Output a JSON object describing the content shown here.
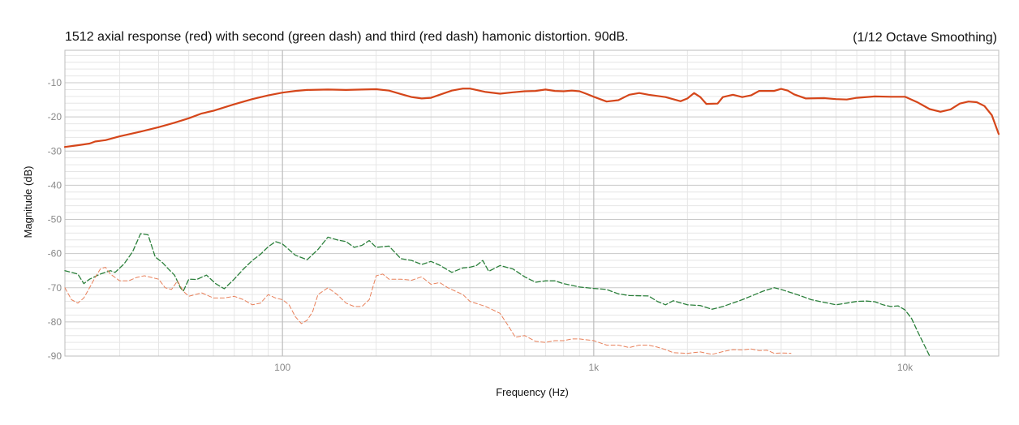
{
  "chart_data": {
    "type": "line",
    "title": "1512 axial response (red) with second (green dash) and third (red dash) hamonic distortion. 90dB.",
    "subtitle": "(1/12 Octave Smoothing)",
    "xlabel": "Frequency (Hz)",
    "ylabel": "Magnitude (dB)",
    "x_scale": "log",
    "xlim": [
      20,
      20000
    ],
    "ylim": [
      -90,
      -0.5
    ],
    "y_ticks": [
      -10,
      -20,
      -30,
      -40,
      -50,
      -60,
      -70,
      -80,
      -90
    ],
    "x_ticks": [
      {
        "value": 100,
        "label": "100"
      },
      {
        "value": 1000,
        "label": "1k"
      },
      {
        "value": 10000,
        "label": "10k"
      }
    ],
    "grid": true,
    "series": [
      {
        "color": "#d5461a",
        "style": "solid",
        "points": [
          [
            20,
            -28.8
          ],
          [
            22,
            -28.3
          ],
          [
            24,
            -27.8
          ],
          [
            25,
            -27.2
          ],
          [
            27,
            -26.8
          ],
          [
            30,
            -25.7
          ],
          [
            35,
            -24.3
          ],
          [
            40,
            -23
          ],
          [
            45,
            -21.7
          ],
          [
            50,
            -20.4
          ],
          [
            55,
            -19
          ],
          [
            60,
            -18.2
          ],
          [
            70,
            -16.3
          ],
          [
            80,
            -14.8
          ],
          [
            90,
            -13.7
          ],
          [
            100,
            -12.9
          ],
          [
            110,
            -12.4
          ],
          [
            120,
            -12.1
          ],
          [
            140,
            -12
          ],
          [
            160,
            -12.1
          ],
          [
            180,
            -12
          ],
          [
            200,
            -11.9
          ],
          [
            220,
            -12.3
          ],
          [
            240,
            -13.3
          ],
          [
            260,
            -14.2
          ],
          [
            280,
            -14.6
          ],
          [
            300,
            -14.4
          ],
          [
            320,
            -13.5
          ],
          [
            350,
            -12.3
          ],
          [
            380,
            -11.7
          ],
          [
            400,
            -11.7
          ],
          [
            450,
            -12.7
          ],
          [
            500,
            -13.2
          ],
          [
            550,
            -12.8
          ],
          [
            600,
            -12.5
          ],
          [
            650,
            -12.4
          ],
          [
            700,
            -12
          ],
          [
            750,
            -12.4
          ],
          [
            800,
            -12.5
          ],
          [
            850,
            -12.3
          ],
          [
            900,
            -12.5
          ],
          [
            950,
            -13.3
          ],
          [
            1000,
            -14.1
          ],
          [
            1100,
            -15.5
          ],
          [
            1200,
            -15.1
          ],
          [
            1300,
            -13.5
          ],
          [
            1400,
            -13
          ],
          [
            1500,
            -13.5
          ],
          [
            1700,
            -14.2
          ],
          [
            1900,
            -15.4
          ],
          [
            2000,
            -14.6
          ],
          [
            2100,
            -13
          ],
          [
            2200,
            -14.2
          ],
          [
            2300,
            -16.2
          ],
          [
            2500,
            -16.1
          ],
          [
            2600,
            -14.2
          ],
          [
            2800,
            -13.5
          ],
          [
            3000,
            -14.2
          ],
          [
            3200,
            -13.7
          ],
          [
            3400,
            -12.4
          ],
          [
            3600,
            -12.4
          ],
          [
            3800,
            -12.4
          ],
          [
            4000,
            -11.8
          ],
          [
            4200,
            -12.3
          ],
          [
            4400,
            -13.4
          ],
          [
            4800,
            -14.6
          ],
          [
            5500,
            -14.5
          ],
          [
            6000,
            -14.8
          ],
          [
            6500,
            -14.9
          ],
          [
            7000,
            -14.4
          ],
          [
            8000,
            -14
          ],
          [
            9000,
            -14.1
          ],
          [
            10000,
            -14.1
          ],
          [
            11000,
            -15.8
          ],
          [
            12000,
            -17.7
          ],
          [
            13000,
            -18.5
          ],
          [
            14000,
            -17.8
          ],
          [
            15000,
            -16.1
          ],
          [
            16000,
            -15.5
          ],
          [
            17000,
            -15.7
          ],
          [
            18000,
            -16.8
          ],
          [
            19000,
            -19.5
          ],
          [
            20000,
            -25
          ]
        ]
      },
      {
        "color": "#2a7f3a",
        "style": "dashed",
        "points": [
          [
            20,
            -65
          ],
          [
            22,
            -66
          ],
          [
            23,
            -68.8
          ],
          [
            24,
            -67.5
          ],
          [
            26,
            -66
          ],
          [
            28,
            -65
          ],
          [
            29,
            -65.5
          ],
          [
            31,
            -63
          ],
          [
            33,
            -59.5
          ],
          [
            35,
            -54.2
          ],
          [
            37,
            -54.5
          ],
          [
            39,
            -61
          ],
          [
            41,
            -62.5
          ],
          [
            43,
            -64.5
          ],
          [
            45,
            -66.3
          ],
          [
            47,
            -70
          ],
          [
            48,
            -71
          ],
          [
            50,
            -67.5
          ],
          [
            53,
            -67.6
          ],
          [
            57,
            -66.3
          ],
          [
            61,
            -68.8
          ],
          [
            65,
            -70.3
          ],
          [
            70,
            -67.5
          ],
          [
            75,
            -64.5
          ],
          [
            80,
            -62
          ],
          [
            85,
            -60.2
          ],
          [
            90,
            -58
          ],
          [
            95,
            -56.5
          ],
          [
            100,
            -57.2
          ],
          [
            110,
            -60.5
          ],
          [
            120,
            -61.8
          ],
          [
            130,
            -58.8
          ],
          [
            140,
            -55.2
          ],
          [
            150,
            -56
          ],
          [
            160,
            -56.5
          ],
          [
            170,
            -58.2
          ],
          [
            180,
            -57.6
          ],
          [
            190,
            -56.2
          ],
          [
            200,
            -58.2
          ],
          [
            210,
            -58
          ],
          [
            220,
            -57.8
          ],
          [
            240,
            -61.5
          ],
          [
            260,
            -62
          ],
          [
            280,
            -63.2
          ],
          [
            300,
            -62.3
          ],
          [
            320,
            -63.4
          ],
          [
            350,
            -65.5
          ],
          [
            380,
            -64.2
          ],
          [
            400,
            -64
          ],
          [
            420,
            -63.5
          ],
          [
            440,
            -62
          ],
          [
            460,
            -65.2
          ],
          [
            500,
            -63.5
          ],
          [
            550,
            -64.5
          ],
          [
            600,
            -66.8
          ],
          [
            650,
            -68.4
          ],
          [
            700,
            -68
          ],
          [
            750,
            -68
          ],
          [
            800,
            -68.8
          ],
          [
            900,
            -69.8
          ],
          [
            1000,
            -70.2
          ],
          [
            1100,
            -70.5
          ],
          [
            1200,
            -71.8
          ],
          [
            1300,
            -72.3
          ],
          [
            1500,
            -72.4
          ],
          [
            1600,
            -74
          ],
          [
            1700,
            -75
          ],
          [
            1800,
            -73.8
          ],
          [
            2000,
            -75
          ],
          [
            2200,
            -75.2
          ],
          [
            2400,
            -76.3
          ],
          [
            2600,
            -75.5
          ],
          [
            3000,
            -73.5
          ],
          [
            3500,
            -71
          ],
          [
            3800,
            -70
          ],
          [
            4000,
            -70.5
          ],
          [
            4500,
            -72
          ],
          [
            5000,
            -73.5
          ],
          [
            6000,
            -75
          ],
          [
            6500,
            -74.5
          ],
          [
            7000,
            -74
          ],
          [
            7500,
            -73.9
          ],
          [
            8000,
            -74.1
          ],
          [
            8500,
            -75
          ],
          [
            9000,
            -75.5
          ],
          [
            9500,
            -75.3
          ],
          [
            10000,
            -76.5
          ],
          [
            10500,
            -79
          ],
          [
            11000,
            -83
          ],
          [
            12000,
            -90
          ]
        ]
      },
      {
        "color": "#e8805a",
        "style": "dashed",
        "points": [
          [
            20,
            -70
          ],
          [
            21,
            -73.5
          ],
          [
            22,
            -74.5
          ],
          [
            23,
            -73
          ],
          [
            24,
            -70
          ],
          [
            25,
            -67
          ],
          [
            26,
            -64.5
          ],
          [
            27,
            -64
          ],
          [
            28,
            -66
          ],
          [
            30,
            -68
          ],
          [
            32,
            -68
          ],
          [
            34,
            -67
          ],
          [
            36,
            -66.5
          ],
          [
            38,
            -67
          ],
          [
            40,
            -67.5
          ],
          [
            42,
            -70
          ],
          [
            44,
            -70.5
          ],
          [
            46,
            -68
          ],
          [
            48,
            -71
          ],
          [
            50,
            -72.5
          ],
          [
            55,
            -71.5
          ],
          [
            60,
            -73
          ],
          [
            65,
            -73
          ],
          [
            70,
            -72.5
          ],
          [
            75,
            -73.5
          ],
          [
            80,
            -75
          ],
          [
            85,
            -74.5
          ],
          [
            90,
            -72
          ],
          [
            95,
            -73
          ],
          [
            100,
            -73.5
          ],
          [
            105,
            -75
          ],
          [
            110,
            -78.5
          ],
          [
            115,
            -80.5
          ],
          [
            120,
            -79.5
          ],
          [
            125,
            -77
          ],
          [
            130,
            -72
          ],
          [
            140,
            -70
          ],
          [
            150,
            -72
          ],
          [
            160,
            -74.5
          ],
          [
            170,
            -75.5
          ],
          [
            180,
            -75.5
          ],
          [
            190,
            -73.5
          ],
          [
            200,
            -66.5
          ],
          [
            210,
            -66
          ],
          [
            220,
            -67.5
          ],
          [
            240,
            -67.5
          ],
          [
            260,
            -67.8
          ],
          [
            280,
            -66.8
          ],
          [
            300,
            -69
          ],
          [
            320,
            -68.5
          ],
          [
            340,
            -70
          ],
          [
            380,
            -72
          ],
          [
            400,
            -74
          ],
          [
            450,
            -75.5
          ],
          [
            500,
            -77.5
          ],
          [
            530,
            -81
          ],
          [
            560,
            -84.5
          ],
          [
            600,
            -84
          ],
          [
            650,
            -85.7
          ],
          [
            700,
            -86
          ],
          [
            750,
            -85.5
          ],
          [
            800,
            -85.5
          ],
          [
            850,
            -85
          ],
          [
            900,
            -85
          ],
          [
            1000,
            -85.5
          ],
          [
            1100,
            -86.8
          ],
          [
            1200,
            -86.8
          ],
          [
            1300,
            -87.5
          ],
          [
            1400,
            -86.8
          ],
          [
            1500,
            -86.8
          ],
          [
            1600,
            -87.4
          ],
          [
            1700,
            -88.1
          ],
          [
            1800,
            -89
          ],
          [
            2000,
            -89.2
          ],
          [
            2200,
            -88.8
          ],
          [
            2400,
            -89.5
          ],
          [
            2600,
            -88.7
          ],
          [
            2800,
            -88.1
          ],
          [
            3000,
            -88.2
          ],
          [
            3200,
            -87.9
          ],
          [
            3400,
            -88.4
          ],
          [
            3600,
            -88.3
          ],
          [
            3800,
            -89.2
          ],
          [
            4000,
            -89.1
          ],
          [
            4300,
            -89.2
          ]
        ]
      }
    ]
  }
}
